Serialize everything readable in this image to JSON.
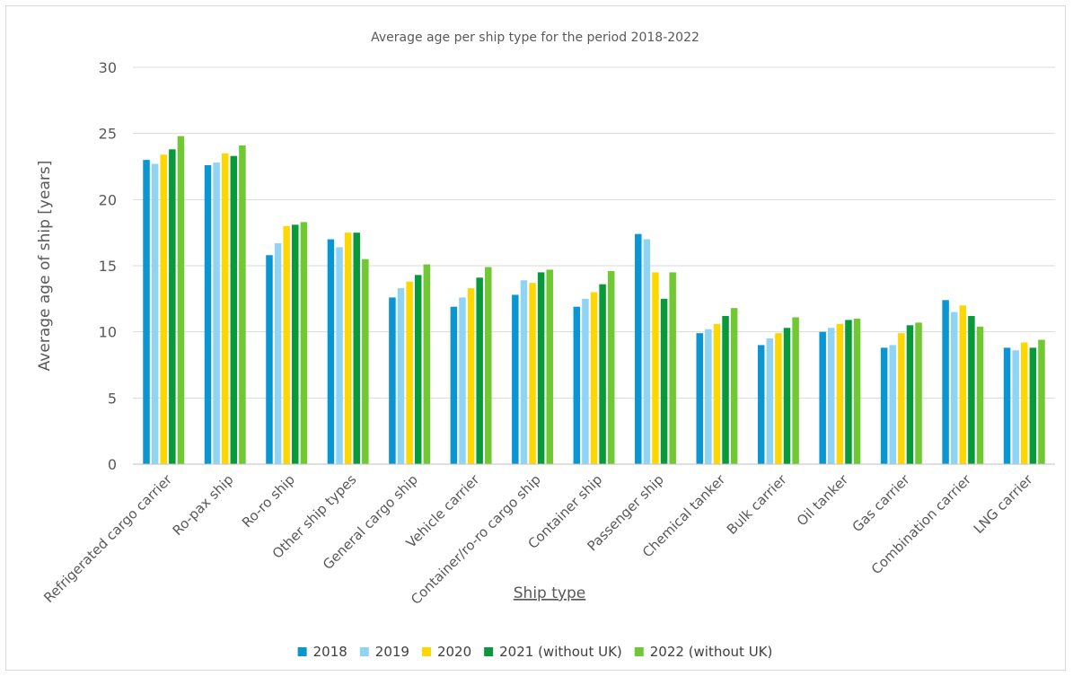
{
  "chart_data": {
    "type": "bar",
    "title": "Average age per ship type for the period 2018-2022",
    "xlabel": "Ship type",
    "ylabel": "Average age of ship [years]",
    "ylim": [
      0,
      30
    ],
    "yticks": [
      0,
      5,
      10,
      15,
      20,
      25,
      30
    ],
    "grid": true,
    "legend_position": "bottom",
    "categories": [
      "Refrigerated cargo carrier",
      "Ro-pax ship",
      "Ro-ro ship",
      "Other ship types",
      "General cargo ship",
      "Vehicle carrier",
      "Container/ro-ro cargo ship",
      "Container ship",
      "Passenger ship",
      "Chemical tanker",
      "Bulk carrier",
      "Oil tanker",
      "Gas carrier",
      "Combination carrier",
      "LNG carrier"
    ],
    "series": [
      {
        "name": "2018",
        "color": "#0a96d2",
        "values": [
          23.0,
          22.6,
          15.8,
          17.0,
          12.6,
          11.9,
          12.8,
          11.9,
          17.4,
          9.9,
          9.0,
          10.0,
          8.8,
          12.4,
          8.8
        ]
      },
      {
        "name": "2019",
        "color": "#8fd3f5",
        "values": [
          22.7,
          22.8,
          16.7,
          16.4,
          13.3,
          12.6,
          13.9,
          12.5,
          17.0,
          10.2,
          9.5,
          10.3,
          9.0,
          11.5,
          8.6
        ]
      },
      {
        "name": "2020",
        "color": "#ffd700",
        "values": [
          23.4,
          23.5,
          18.0,
          17.5,
          13.8,
          13.3,
          13.7,
          13.0,
          14.5,
          10.6,
          9.9,
          10.6,
          9.9,
          12.0,
          9.2
        ]
      },
      {
        "name": "2021 (without UK)",
        "color": "#089a3a",
        "values": [
          23.8,
          23.3,
          18.1,
          17.5,
          14.3,
          14.1,
          14.5,
          13.6,
          12.5,
          11.2,
          10.3,
          10.9,
          10.5,
          11.2,
          8.8
        ]
      },
      {
        "name": "2022 (without UK)",
        "color": "#70c832",
        "values": [
          24.8,
          24.1,
          18.3,
          15.5,
          15.1,
          14.9,
          14.7,
          14.6,
          14.5,
          11.8,
          11.1,
          11.0,
          10.7,
          10.4,
          9.4
        ]
      }
    ]
  }
}
